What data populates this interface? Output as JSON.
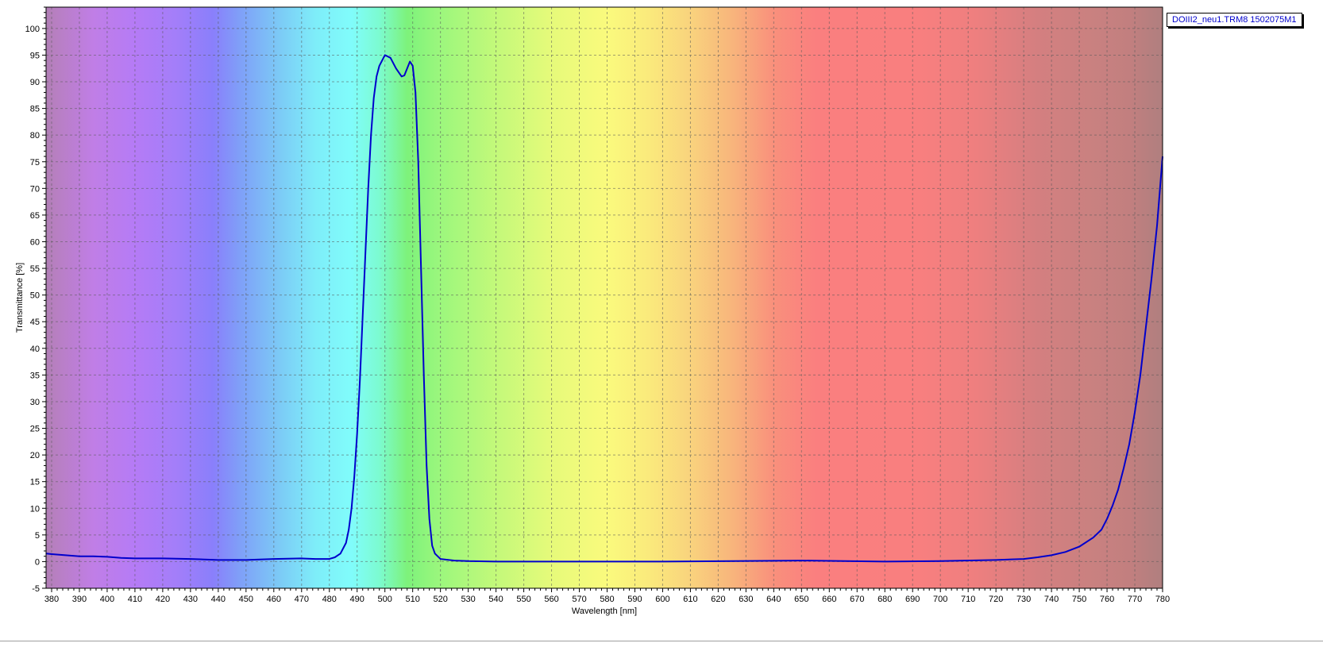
{
  "chart_data": {
    "type": "line",
    "xlabel": "Wavelength [nm]",
    "ylabel": "Transmittance [%]",
    "xlim": [
      378,
      780
    ],
    "ylim": [
      -5,
      104
    ],
    "x_ticks": [
      380,
      390,
      400,
      410,
      420,
      430,
      440,
      450,
      460,
      470,
      480,
      490,
      500,
      510,
      520,
      530,
      540,
      550,
      560,
      570,
      580,
      590,
      600,
      610,
      620,
      630,
      640,
      650,
      660,
      670,
      680,
      690,
      700,
      710,
      720,
      730,
      740,
      750,
      760,
      770,
      780
    ],
    "y_ticks": [
      -5,
      0,
      5,
      10,
      15,
      20,
      25,
      30,
      35,
      40,
      45,
      50,
      55,
      60,
      65,
      70,
      75,
      80,
      85,
      90,
      95,
      100
    ],
    "grid": true,
    "legend_position": "top-right",
    "background": "visible-spectrum gradient",
    "series": [
      {
        "name": "DOIII2_neu1.TRM8 1502075M1",
        "color": "#0000cc",
        "x": [
          378,
          380,
          385,
          390,
          395,
          400,
          405,
          410,
          420,
          430,
          440,
          450,
          460,
          470,
          475,
          480,
          482,
          484,
          486,
          487,
          488,
          489,
          490,
          491,
          492,
          493,
          494,
          495,
          496,
          497,
          498,
          500,
          502,
          504,
          506,
          507,
          508,
          509,
          510,
          511,
          512,
          513,
          514,
          515,
          516,
          517,
          518,
          520,
          525,
          530,
          540,
          550,
          600,
          650,
          680,
          700,
          720,
          730,
          735,
          740,
          745,
          750,
          755,
          758,
          760,
          762,
          764,
          766,
          768,
          770,
          772,
          774,
          776,
          778,
          780
        ],
        "values": [
          1.5,
          1.4,
          1.2,
          1.0,
          1.0,
          0.9,
          0.7,
          0.6,
          0.6,
          0.5,
          0.3,
          0.3,
          0.5,
          0.6,
          0.5,
          0.5,
          0.8,
          1.5,
          3.5,
          6,
          10,
          16,
          24,
          34,
          46,
          58,
          70,
          80,
          87,
          91,
          93,
          95,
          94.5,
          92.5,
          91,
          91.2,
          92.5,
          93.8,
          93,
          88,
          75,
          55,
          35,
          18,
          8,
          3,
          1.5,
          0.5,
          0.2,
          0.1,
          0,
          0,
          0,
          0.2,
          0,
          0.1,
          0.3,
          0.5,
          0.8,
          1.2,
          1.8,
          2.8,
          4.5,
          6,
          8,
          10.5,
          13.5,
          17.5,
          22,
          28,
          35,
          44,
          53,
          63,
          76
        ]
      }
    ]
  }
}
